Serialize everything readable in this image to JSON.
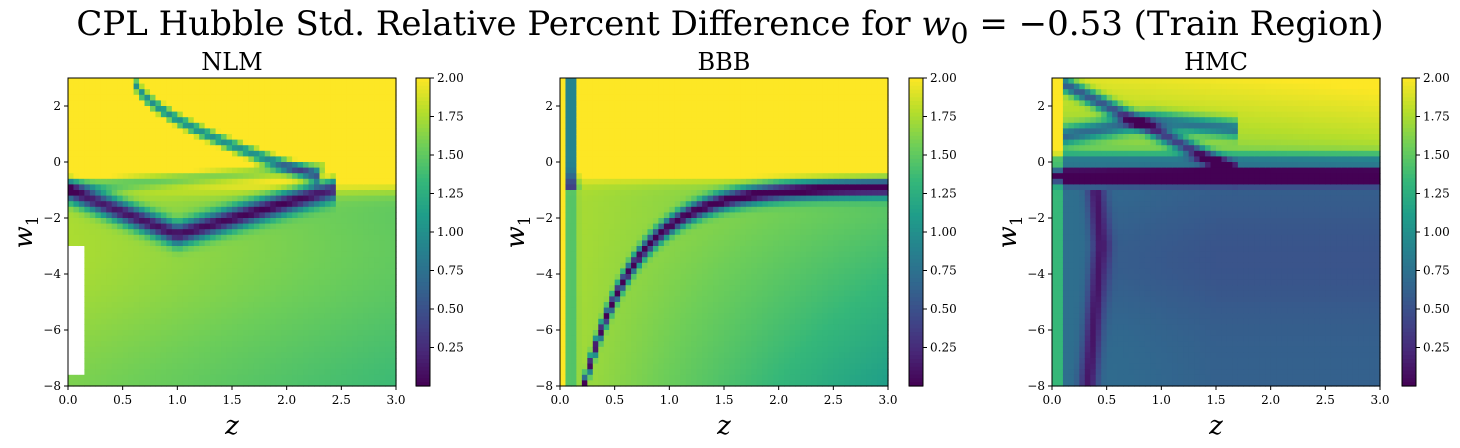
{
  "title": {
    "prefix": "CPL Hubble Std. Relative Percent Difference for ",
    "math": "w",
    "math_sub": "0",
    "equals": " = −0.53",
    "suffix": " (Train Region)"
  },
  "colors": {
    "colormap": "viridis",
    "viridis_stops": [
      "#440154",
      "#482878",
      "#3e4989",
      "#31688e",
      "#26828e",
      "#1f9e89",
      "#35b779",
      "#6ece58",
      "#b5de2b",
      "#fde725"
    ],
    "missing": "#ffffff"
  },
  "chart_data": [
    {
      "type": "heatmap",
      "title": "NLM",
      "xlabel": "z",
      "ylabel": "w",
      "ylabel_sub": "1",
      "xlim": [
        0.0,
        3.0
      ],
      "ylim": [
        -8,
        3
      ],
      "x_ticks": [
        "0.0",
        "0.5",
        "1.0",
        "1.5",
        "2.0",
        "2.5",
        "3.0"
      ],
      "y_ticks": [
        "2",
        "0",
        "−2",
        "−4",
        "−6",
        "−8"
      ],
      "colorbar": {
        "vmin": 0.0,
        "vmax": 2.0,
        "ticks": [
          "2.00",
          "1.75",
          "1.50",
          "1.25",
          "1.00",
          "0.75",
          "0.50",
          "0.25"
        ]
      },
      "features": "yellow (saturated ≥2.00) above w1≈-0.8; low-value (dark) band along w1≈-0.9..-2.6 from z=0 to z≈2.4 looping back near z≈2.1-2.3; thin curve descending from (0.65,3) to (2.2,-0.4); white missing region at z<0.2, w1 in [-8,-3]"
    },
    {
      "type": "heatmap",
      "title": "BBB",
      "xlabel": "z",
      "ylabel": "w",
      "ylabel_sub": "1",
      "xlim": [
        0.0,
        3.0
      ],
      "ylim": [
        -8,
        3
      ],
      "x_ticks": [
        "0.0",
        "0.5",
        "1.0",
        "1.5",
        "2.0",
        "2.5",
        "3.0"
      ],
      "y_ticks": [
        "2",
        "0",
        "−2",
        "−4",
        "−6",
        "−8"
      ],
      "colorbar": {
        "vmin": 0.0,
        "vmax": 2.0,
        "ticks": [
          "2.00",
          "1.75",
          "1.50",
          "1.25",
          "1.00",
          "0.75",
          "0.50",
          "0.25"
        ]
      },
      "features": "yellow above w1≈-0.5; dark curve rising from (0.25,-8) to (2.5,-0.9); dark vertical strip near z≈0.1; green gradient decreasing toward lower right (~0.9 at z=3,w1=-8)"
    },
    {
      "type": "heatmap",
      "title": "HMC",
      "xlabel": "z",
      "ylabel": "w",
      "ylabel_sub": "1",
      "xlim": [
        0.0,
        3.0
      ],
      "ylim": [
        -8,
        3
      ],
      "x_ticks": [
        "0.0",
        "0.5",
        "1.0",
        "1.5",
        "2.0",
        "2.5",
        "3.0"
      ],
      "y_ticks": [
        "2",
        "0",
        "−2",
        "−4",
        "−6",
        "−8"
      ],
      "colorbar": {
        "vmin": 0.0,
        "vmax": 2.0,
        "ticks": [
          "2.00",
          "1.75",
          "1.50",
          "1.25",
          "1.00",
          "0.75",
          "0.50",
          "0.25"
        ]
      },
      "features": "yellow-green region above w1≈0 with crossing dark curves near z 0.2-1.6; sharp dark band at w1≈-0.5; low values (0.5-0.8) across lower region; dark vertical curve near z≈0.3-0.45"
    }
  ]
}
